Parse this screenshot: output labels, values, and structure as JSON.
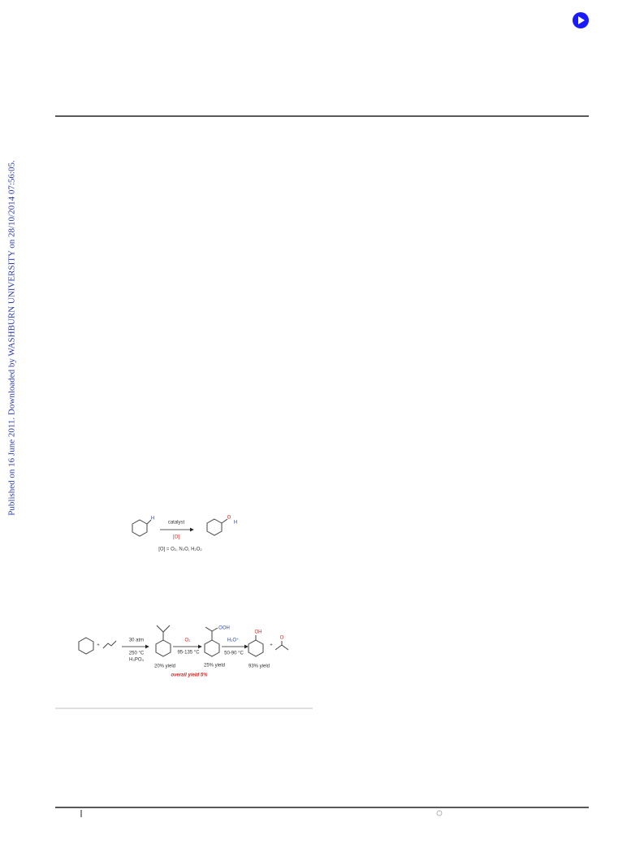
{
  "sidebar": "Published on 16 June 2011. Downloaded by WASHBURN UNIVERSITY on 28/10/2014 07:56:05.",
  "scheme1": {
    "substrate_h": "H",
    "catalyst": "catalyst",
    "oxidant": "[O]",
    "product_o": "O",
    "product_h": "H",
    "oxidant_def": "[O] = O₂, N₂O, H₂O₂"
  },
  "scheme2": {
    "plus1": "+",
    "step1_top": "30 atm",
    "step1_temp": "250 °C",
    "step1_acid": "H₃PO₄",
    "yield1": "20% yield",
    "step2_top": "O₂",
    "step2_temp": "95-135 °C",
    "hydroperoxide": "OOH",
    "yield2": "25% yield",
    "step3_top": "H₃O⁺",
    "step3_temp": "50-90 °C",
    "phenol_oh": "OH",
    "yield3": "93% yield",
    "plus2": "+",
    "acetone_o": "O",
    "overall": "overall yield 5%"
  }
}
